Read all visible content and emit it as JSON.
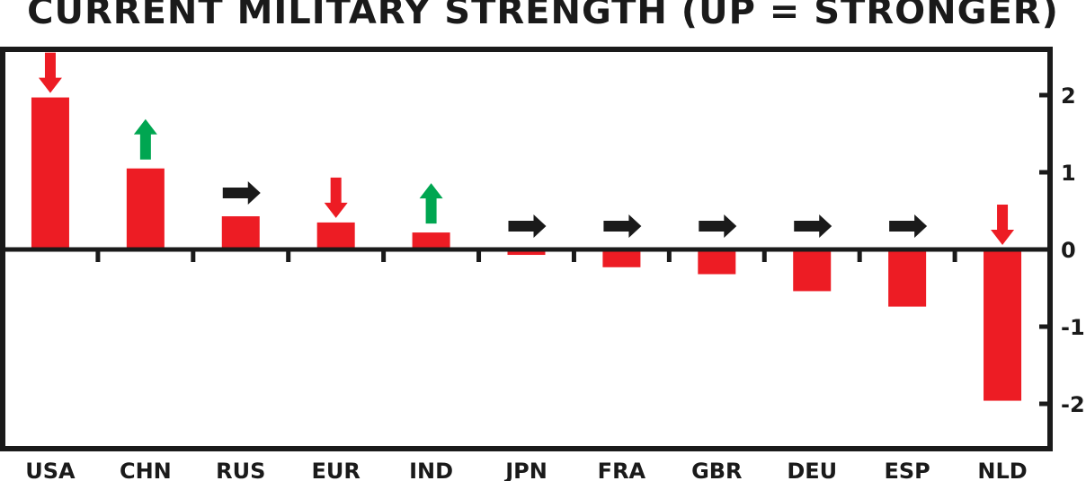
{
  "chart_data": {
    "type": "bar",
    "title": "CURRENT MILITARY STRENGTH (UP = STRONGER)",
    "categories": [
      "USA",
      "CHN",
      "RUS",
      "EUR",
      "IND",
      "JPN",
      "FRA",
      "GBR",
      "DEU",
      "ESP",
      "NLD"
    ],
    "values": [
      1.97,
      1.05,
      0.43,
      0.35,
      0.22,
      -0.07,
      -0.23,
      -0.32,
      -0.54,
      -0.74,
      -1.96
    ],
    "trend": [
      "down",
      "up",
      "flat",
      "down",
      "up",
      "flat",
      "flat",
      "flat",
      "flat",
      "flat",
      "down"
    ],
    "ylim": [
      -2.6,
      2.6
    ],
    "yticks": [
      "2",
      "1",
      "0",
      "-1",
      "-2"
    ],
    "ytick_values": [
      2,
      1,
      0,
      -1,
      -2
    ],
    "bar_color": "#ed1c24",
    "trend_colors": {
      "up": "#00a651",
      "down": "#ed1c24",
      "flat": "#1a1a1a"
    },
    "grid": false,
    "y_axis_side": "right"
  }
}
